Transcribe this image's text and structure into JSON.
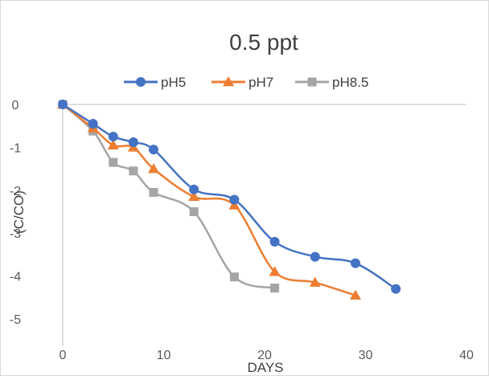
{
  "chart_data": {
    "type": "line",
    "title": "0.5 ppt",
    "xlabel": "DAYS",
    "ylabel": "(C/CO)",
    "xlim": [
      0,
      40
    ],
    "ylim": [
      -5,
      0
    ],
    "x_ticks": [
      "0",
      "10",
      "20",
      "30",
      "40"
    ],
    "y_ticks": [
      "0",
      "-1",
      "-2",
      "-3",
      "-4",
      "-5"
    ],
    "legend_position": "top",
    "smooth": true,
    "series": [
      {
        "name": "pH5",
        "color": "#4472c4",
        "marker": "circle",
        "points": [
          [
            0,
            0
          ],
          [
            3,
            -0.45
          ],
          [
            5,
            -0.75
          ],
          [
            7,
            -0.88
          ],
          [
            9,
            -1.05
          ],
          [
            13,
            -1.98
          ],
          [
            17,
            -2.22
          ],
          [
            21,
            -3.2
          ],
          [
            25,
            -3.55
          ],
          [
            29,
            -3.7
          ],
          [
            33,
            -4.3
          ]
        ]
      },
      {
        "name": "pH7",
        "color": "#ed7d31",
        "marker": "triangle",
        "points": [
          [
            0,
            0
          ],
          [
            3,
            -0.55
          ],
          [
            5,
            -0.95
          ],
          [
            7,
            -1.0
          ],
          [
            9,
            -1.5
          ],
          [
            13,
            -2.15
          ],
          [
            17,
            -2.35
          ],
          [
            21,
            -3.9
          ],
          [
            25,
            -4.15
          ],
          [
            29,
            -4.45
          ]
        ]
      },
      {
        "name": "pH8.5",
        "color": "#a5a5a5",
        "marker": "square",
        "points": [
          [
            0,
            0
          ],
          [
            3,
            -0.62
          ],
          [
            5,
            -1.35
          ],
          [
            7,
            -1.55
          ],
          [
            9,
            -2.05
          ],
          [
            13,
            -2.5
          ],
          [
            17,
            -4.02
          ],
          [
            21,
            -4.28
          ]
        ]
      }
    ]
  }
}
